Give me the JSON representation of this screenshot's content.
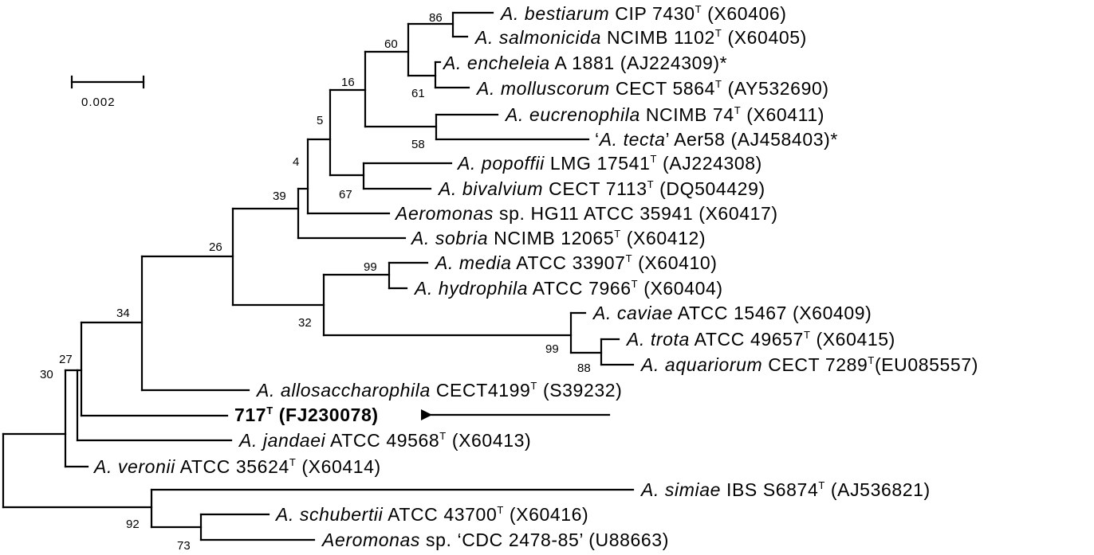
{
  "scale_bar": {
    "label": "0.002"
  },
  "bootstrap": {
    "n86": "86",
    "n60": "60",
    "n61": "61",
    "n16": "16",
    "n58": "58",
    "n5": "5",
    "n67": "67",
    "n4": "4",
    "n39": "39",
    "n26": "26",
    "n99a": "99",
    "n32": "32",
    "n99b": "99",
    "n88": "88",
    "n34": "34",
    "n27": "27",
    "n30": "30",
    "n92": "92",
    "n73": "73"
  },
  "taxa": [
    {
      "genus": "A. bestiarum",
      "strain": " CIP 7430",
      "sup": "T",
      "acc": " (X60406)",
      "suffix": ""
    },
    {
      "genus": "A. salmonicida",
      "strain": " NCIMB 1102",
      "sup": "T",
      "acc": " (X60405)",
      "suffix": ""
    },
    {
      "genus": "A. encheleia",
      "strain": " A 1881 (AJ224309)*",
      "sup": "",
      "acc": "",
      "suffix": ""
    },
    {
      "genus": "A. molluscorum",
      "strain": " CECT 5864",
      "sup": "T",
      "acc": " (AY532690)",
      "suffix": ""
    },
    {
      "genus": "A. eucrenophila",
      "strain": " NCIMB 74",
      "sup": "T",
      "acc": " (X60411)",
      "suffix": ""
    },
    {
      "prefix": "‘",
      "genus": "A. tecta",
      "strain": "’ Aer58 (AJ458403)*",
      "sup": "",
      "acc": "",
      "suffix": ""
    },
    {
      "genus": "A. popoffii",
      "strain": " LMG 17541",
      "sup": "T",
      "acc": " (AJ224308)",
      "suffix": ""
    },
    {
      "genus": "A. bivalvium",
      "strain": " CECT 7113",
      "sup": "T",
      "acc": " (DQ504429)",
      "suffix": ""
    },
    {
      "genus": "Aeromonas",
      "strain": " sp. HG11 ATCC 35941 (X60417)",
      "sup": "",
      "acc": "",
      "suffix": ""
    },
    {
      "genus": "A. sobria",
      "strain": " NCIMB 12065",
      "sup": "T",
      "acc": " (X60412)",
      "suffix": ""
    },
    {
      "genus": "A. media",
      "strain": " ATCC 33907",
      "sup": "T",
      "acc": " (X60410)",
      "suffix": ""
    },
    {
      "genus": "A. hydrophila",
      "strain": " ATCC 7966",
      "sup": "T",
      "acc": " (X60404)",
      "suffix": ""
    },
    {
      "genus": "A. caviae",
      "strain": " ATCC 15467 (X60409)",
      "sup": "",
      "acc": "",
      "suffix": ""
    },
    {
      "genus": "A. trota",
      "strain": " ATCC 49657",
      "sup": "T",
      "acc": " (X60415)",
      "suffix": ""
    },
    {
      "genus": "A. aquariorum",
      "strain": " CECT 7289",
      "sup": "T",
      "acc": "(EU085557)",
      "suffix": ""
    },
    {
      "genus": "A. allosaccharophila",
      "strain": " CECT4199",
      "sup": "T",
      "acc": " (S39232)",
      "suffix": ""
    },
    {
      "genus": "",
      "strain": "",
      "sup": "",
      "acc": "",
      "suffix": ""
    },
    {
      "genus": "A. jandaei",
      "strain": " ATCC 49568",
      "sup": "T",
      "acc": " (X60413)",
      "suffix": ""
    },
    {
      "genus": "A. veronii",
      "strain": " ATCC 35624",
      "sup": "T",
      "acc": " (X60414)",
      "suffix": ""
    },
    {
      "genus": "A. simiae",
      "strain": " IBS S6874",
      "sup": "T",
      "acc": " (AJ536821)",
      "suffix": ""
    },
    {
      "genus": "A. schubertii",
      "strain": " ATCC 43700",
      "sup": "T",
      "acc": " (X60416)",
      "suffix": ""
    },
    {
      "genus": "Aeromonas",
      "strain": " sp. ‘CDC 2478-85’ (U88663)",
      "sup": "",
      "acc": "",
      "suffix": ""
    }
  ],
  "highlight": {
    "id": "717",
    "sup": "T",
    "acc": " (FJ230078)"
  }
}
